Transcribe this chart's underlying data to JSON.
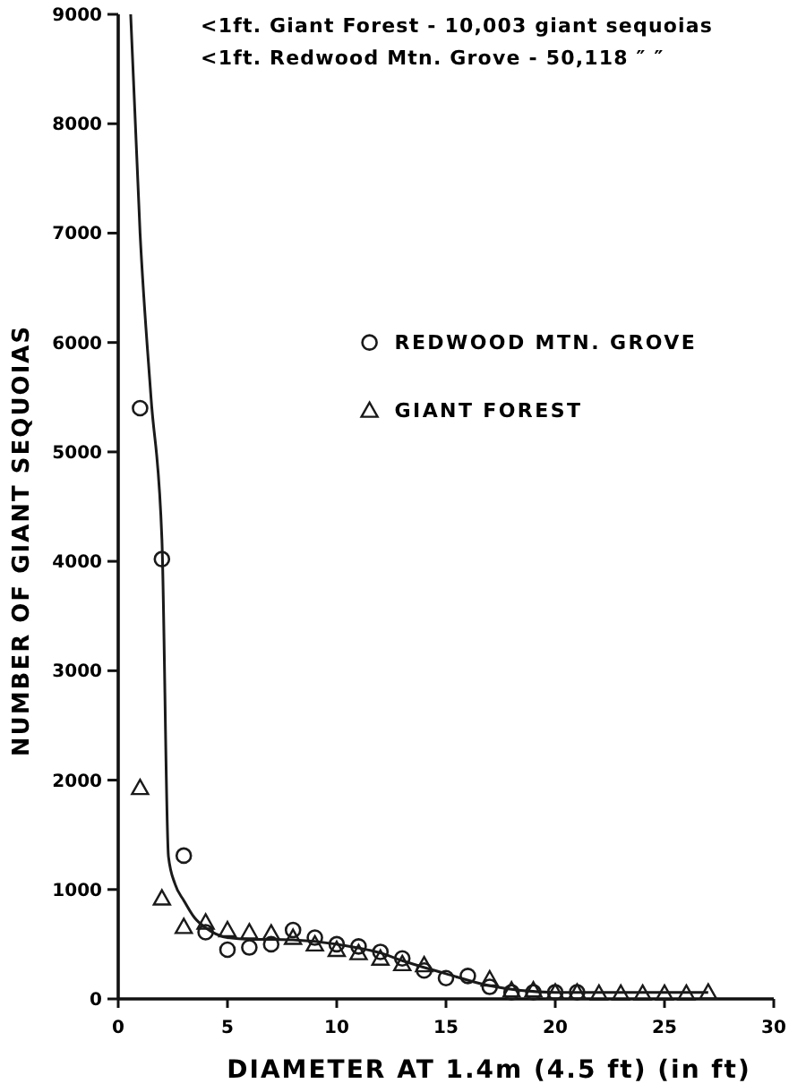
{
  "chart_data": {
    "type": "scatter",
    "xlabel": "DIAMETER  AT  1.4m (4.5 ft) (in ft)",
    "ylabel": "NUMBER  OF  GIANT  SEQUOIAS",
    "annotations": [
      "<1ft. Giant Forest - 10,003 giant sequoias",
      "<1ft. Redwood Mtn. Grove - 50,118  ″    ″"
    ],
    "xlim": [
      0,
      30
    ],
    "xticks": [
      0,
      5,
      10,
      15,
      20,
      25,
      30
    ],
    "ylim": [
      0,
      9000
    ],
    "yticks": [
      0,
      1000,
      2000,
      3000,
      4000,
      5000,
      6000,
      7000,
      8000,
      9000
    ],
    "grid": false,
    "legend": "right",
    "series": [
      {
        "name": "REDWOOD  MTN. GROVE",
        "color": "#1a1a1a",
        "marker": "circle",
        "x": [
          1,
          2,
          3,
          4,
          5,
          6,
          7,
          8,
          9,
          10,
          11,
          12,
          13,
          14,
          15,
          16,
          17,
          18,
          19,
          20,
          21
        ],
        "values": [
          5400,
          4020,
          1310,
          610,
          450,
          470,
          500,
          630,
          560,
          500,
          480,
          430,
          370,
          260,
          190,
          210,
          110,
          60,
          60,
          60,
          60
        ]
      },
      {
        "name": "GIANT  FOREST",
        "color": "#1a1a1a",
        "marker": "triangle",
        "x": [
          1,
          2,
          3,
          4,
          5,
          6,
          7,
          8,
          9,
          10,
          11,
          12,
          13,
          14,
          17,
          18,
          19,
          20,
          21,
          22,
          23,
          24,
          25,
          26,
          27
        ],
        "values": [
          1930,
          920,
          660,
          700,
          630,
          610,
          600,
          560,
          500,
          450,
          420,
          370,
          320,
          310,
          180,
          80,
          80,
          60,
          60,
          50,
          50,
          50,
          50,
          50,
          60
        ]
      },
      {
        "type": "line",
        "color": "#1a1a1a",
        "marker": "none",
        "x": [
          0.57,
          1,
          1.5,
          2,
          2.3,
          2.6,
          3,
          3.5,
          4,
          5,
          6,
          7,
          8,
          10,
          12,
          13,
          15,
          17,
          20,
          27
        ],
        "values": [
          9000,
          7000,
          5500,
          4200,
          1300,
          1050,
          900,
          740,
          650,
          560,
          545,
          545,
          540,
          500,
          420,
          350,
          230,
          120,
          60,
          60
        ]
      }
    ]
  }
}
